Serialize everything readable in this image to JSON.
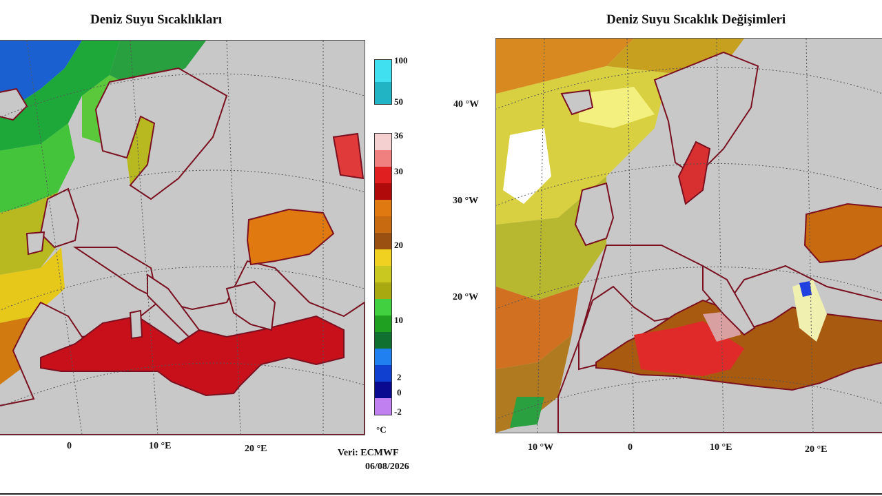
{
  "left_panel": {
    "title": "Deniz Suyu Sıcaklıkları",
    "x_ticks": [
      "0",
      "10 °E",
      "20 °E"
    ],
    "colorbar_upper_ticks": [
      "100",
      "50"
    ],
    "colorbar_ticks": [
      "36",
      "30",
      "20",
      "10",
      "2",
      "0",
      "-2"
    ],
    "unit": "°C",
    "colors": {
      "sea_hot": "#c8101a",
      "sea_warm": "#e07a10",
      "sea_mid": "#c8a010",
      "sea_cool": "#20b030",
      "sea_cold": "#1050d0",
      "land": "#c8c8c8",
      "coast": "#7a1020"
    }
  },
  "right_panel": {
    "title": "Deniz Suyu Sıcaklık Değişimleri",
    "y_ticks": [
      "40 °W",
      "30 °W",
      "20 °W"
    ],
    "x_ticks": [
      "10 °W",
      "0",
      "10 °E",
      "20 °E"
    ]
  },
  "credit": {
    "source": "Veri: ECMWF",
    "date": "06/08/2026"
  }
}
